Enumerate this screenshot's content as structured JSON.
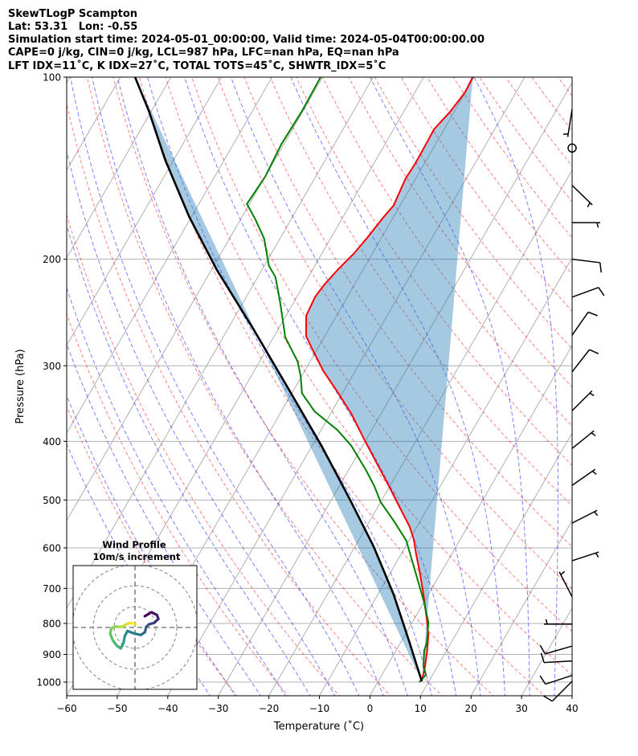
{
  "chart_data": {
    "type": "line",
    "subtype": "skewt-logp",
    "title_lines": [
      "SkewTLogP Scampton",
      "Lat: 53.31   Lon: -0.55",
      "Simulation start time: 2024-05-01_00:00:00, Valid time: 2024-05-04T00:00:00.00",
      "CAPE=0 j/kg, CIN=0 j/kg, LCL=987 hPa, LFC=nan hPa, EQ=nan hPa",
      "LFT IDX=11˚C, K IDX=27˚C, TOTAL TOTS=45˚C, SHWTR_IDX=5˚C"
    ],
    "xlabel": "Temperature (˚C)",
    "ylabel": "Pressure (hPa)",
    "xlim": [
      -60,
      40
    ],
    "ylim": [
      1053,
      100
    ],
    "skew_deg": 30,
    "x_ticks": [
      {
        "value": -60,
        "label": "−60"
      },
      {
        "value": -50,
        "label": "−50"
      },
      {
        "value": -40,
        "label": "−40"
      },
      {
        "value": -30,
        "label": "−30"
      },
      {
        "value": -20,
        "label": "−20"
      },
      {
        "value": -10,
        "label": "−10"
      },
      {
        "value": 0,
        "label": "0"
      },
      {
        "value": 10,
        "label": "10"
      },
      {
        "value": 20,
        "label": "20"
      },
      {
        "value": 30,
        "label": "30"
      },
      {
        "value": 40,
        "label": "40"
      }
    ],
    "y_ticks": [
      {
        "value": 100,
        "label": "100"
      },
      {
        "value": 200,
        "label": "200"
      },
      {
        "value": 300,
        "label": "300"
      },
      {
        "value": 400,
        "label": "400"
      },
      {
        "value": 500,
        "label": "500"
      },
      {
        "value": 600,
        "label": "600"
      },
      {
        "value": 700,
        "label": "700"
      },
      {
        "value": 800,
        "label": "800"
      },
      {
        "value": 900,
        "label": "900"
      },
      {
        "value": 1000,
        "label": "1000"
      }
    ],
    "dry_adiabats_t0_c": {
      "start": -30,
      "stop": 190,
      "step": 10
    },
    "moist_adiabats_t0_c": {
      "start": -35,
      "stop": 45,
      "step": 5
    },
    "colors": {
      "temperature": "#ff0000",
      "dewpoint": "#008000",
      "parcel": "#000000",
      "cin_fill": "#1f77b4",
      "isotherm": "#b0b0b0",
      "dry_adiabat": "#ff0000",
      "moist_adiabat": "#0000ff"
    },
    "series": [
      {
        "name": "temperature",
        "points_p_t": [
          [
            100,
            -50.3
          ],
          [
            106,
            -50.1
          ],
          [
            114,
            -50.8
          ],
          [
            122,
            -52
          ],
          [
            129,
            -51.9
          ],
          [
            139,
            -51.8
          ],
          [
            147,
            -52
          ],
          [
            163,
            -51.3
          ],
          [
            171,
            -52
          ],
          [
            184,
            -52.8
          ],
          [
            196,
            -53.7
          ],
          [
            208,
            -55
          ],
          [
            221,
            -56
          ],
          [
            231,
            -56.4
          ],
          [
            248,
            -56
          ],
          [
            268,
            -53.7
          ],
          [
            282,
            -50.9
          ],
          [
            306,
            -46.3
          ],
          [
            331,
            -41.2
          ],
          [
            360,
            -35.9
          ],
          [
            397,
            -30.4
          ],
          [
            437,
            -24.9
          ],
          [
            474,
            -20.2
          ],
          [
            509,
            -16.2
          ],
          [
            553,
            -11.5
          ],
          [
            582,
            -9.1
          ],
          [
            615,
            -7
          ],
          [
            654,
            -4.5
          ],
          [
            716,
            -1
          ],
          [
            785,
            2.4
          ],
          [
            835,
            4.6
          ],
          [
            888,
            6.2
          ],
          [
            944,
            7.6
          ],
          [
            997,
            8.6
          ]
        ]
      },
      {
        "name": "dewpoint",
        "points_p_t": [
          [
            100,
            -80.4
          ],
          [
            114,
            -80.2
          ],
          [
            129,
            -80.5
          ],
          [
            146,
            -80
          ],
          [
            162,
            -80.5
          ],
          [
            172,
            -77
          ],
          [
            185,
            -73.1
          ],
          [
            205,
            -69.1
          ],
          [
            214,
            -66.5
          ],
          [
            235,
            -62.8
          ],
          [
            269,
            -57.7
          ],
          [
            295,
            -52.5
          ],
          [
            312,
            -50.2
          ],
          [
            333,
            -48
          ],
          [
            357,
            -43.4
          ],
          [
            383,
            -36.8
          ],
          [
            407,
            -32.2
          ],
          [
            446,
            -26.6
          ],
          [
            474,
            -23.1
          ],
          [
            504,
            -20
          ],
          [
            541,
            -15.3
          ],
          [
            584,
            -10.5
          ],
          [
            670,
            -4.3
          ],
          [
            734,
            -0.2
          ],
          [
            797,
            3.2
          ],
          [
            861,
            5.2
          ],
          [
            888,
            5.6
          ],
          [
            944,
            7.3
          ],
          [
            973,
            8.7
          ],
          [
            1000,
            8.2
          ]
        ]
      },
      {
        "name": "parcel",
        "points_p_t": [
          [
            997,
            8.6
          ],
          [
            861,
            1.8
          ],
          [
            716,
            -6.9
          ],
          [
            597,
            -16.3
          ],
          [
            497,
            -26.6
          ],
          [
            407,
            -38.1
          ],
          [
            329,
            -50.9
          ],
          [
            261,
            -64.9
          ],
          [
            208,
            -79
          ],
          [
            170,
            -90.5
          ],
          [
            137,
            -101.7
          ],
          [
            114,
            -110.4
          ],
          [
            100,
            -117.1
          ]
        ]
      }
    ],
    "wind_barbs": [
      {
        "p": 113,
        "dir": 189,
        "speed_kt": 5
      },
      {
        "p": 131,
        "dir": 0,
        "speed_kt": 0
      },
      {
        "p": 151,
        "dir": 134,
        "speed_kt": 5
      },
      {
        "p": 174,
        "dir": 90,
        "speed_kt": 5
      },
      {
        "p": 200,
        "dir": 97,
        "speed_kt": 10
      },
      {
        "p": 231,
        "dir": 70,
        "speed_kt": 10
      },
      {
        "p": 267,
        "dir": 35,
        "speed_kt": 10
      },
      {
        "p": 307,
        "dir": 38,
        "speed_kt": 10
      },
      {
        "p": 356,
        "dir": 45,
        "speed_kt": 5
      },
      {
        "p": 411,
        "dir": 51,
        "speed_kt": 5
      },
      {
        "p": 473,
        "dir": 55,
        "speed_kt": 5
      },
      {
        "p": 546,
        "dir": 63,
        "speed_kt": 5
      },
      {
        "p": 630,
        "dir": 72,
        "speed_kt": 5
      },
      {
        "p": 723,
        "dir": 333,
        "speed_kt": 5
      },
      {
        "p": 802,
        "dir": 270,
        "speed_kt": 5
      },
      {
        "p": 872,
        "dir": 254,
        "speed_kt": 10
      },
      {
        "p": 923,
        "dir": 267,
        "speed_kt": 10
      },
      {
        "p": 975,
        "dir": 252,
        "speed_kt": 10
      },
      {
        "p": 997,
        "dir": 225,
        "speed_kt": 10
      }
    ],
    "hodograph": {
      "title": "Wind Profile",
      "subtitle": "10m/s increment",
      "ring_step_ms": 10,
      "rings": 3,
      "colormap": [
        "#440154",
        "#3b528b",
        "#21908d",
        "#5dc963",
        "#fde725"
      ],
      "uv_ms": [
        [
          4.7,
          5.4
        ],
        [
          7.9,
          7.3
        ],
        [
          10.5,
          6.0
        ],
        [
          11.2,
          4.1
        ],
        [
          9.2,
          2.2
        ],
        [
          6.7,
          1.5
        ],
        [
          5.4,
          0.3
        ],
        [
          4.7,
          -2.3
        ],
        [
          2.8,
          -3.6
        ],
        [
          -0.4,
          -2.9
        ],
        [
          -3.6,
          -1.7
        ],
        [
          -4.9,
          -4.2
        ],
        [
          -5.5,
          -7.4
        ],
        [
          -6.8,
          -10
        ],
        [
          -8.7,
          -8.7
        ],
        [
          -10.6,
          -6.2
        ],
        [
          -11.9,
          -2.9
        ],
        [
          -11.3,
          -0.4
        ],
        [
          -9.4,
          0.5
        ],
        [
          -6.2,
          0.3
        ],
        [
          -4.2,
          1.5
        ],
        [
          -2.3,
          2.2
        ],
        [
          0.3,
          1.5
        ]
      ]
    }
  }
}
